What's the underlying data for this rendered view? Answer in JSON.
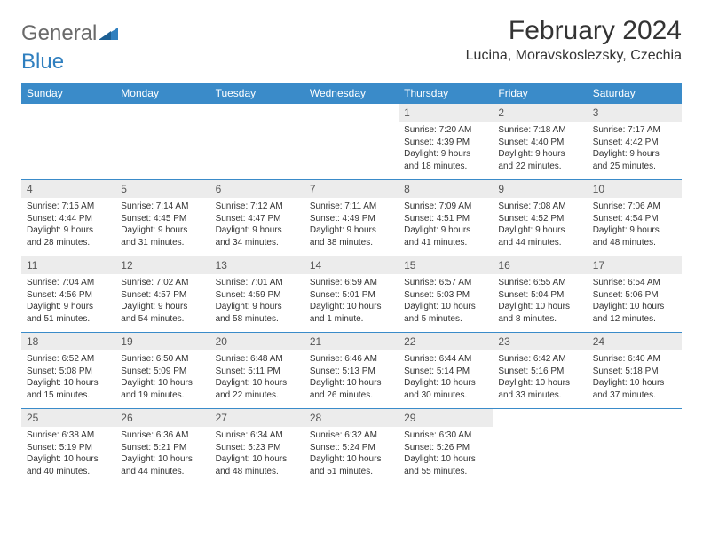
{
  "logo": {
    "text1": "General",
    "text2": "Blue"
  },
  "title": "February 2024",
  "location": "Lucina, Moravskoslezsky, Czechia",
  "colors": {
    "header_bg": "#3a8bc9",
    "header_text": "#ffffff",
    "daynum_bg": "#ececec",
    "border": "#3a8bc9",
    "logo_gray": "#6a6a6a",
    "logo_blue": "#2f7fbf"
  },
  "day_headers": [
    "Sunday",
    "Monday",
    "Tuesday",
    "Wednesday",
    "Thursday",
    "Friday",
    "Saturday"
  ],
  "weeks": [
    [
      null,
      null,
      null,
      null,
      {
        "num": "1",
        "sunrise": "Sunrise: 7:20 AM",
        "sunset": "Sunset: 4:39 PM",
        "daylight1": "Daylight: 9 hours",
        "daylight2": "and 18 minutes."
      },
      {
        "num": "2",
        "sunrise": "Sunrise: 7:18 AM",
        "sunset": "Sunset: 4:40 PM",
        "daylight1": "Daylight: 9 hours",
        "daylight2": "and 22 minutes."
      },
      {
        "num": "3",
        "sunrise": "Sunrise: 7:17 AM",
        "sunset": "Sunset: 4:42 PM",
        "daylight1": "Daylight: 9 hours",
        "daylight2": "and 25 minutes."
      }
    ],
    [
      {
        "num": "4",
        "sunrise": "Sunrise: 7:15 AM",
        "sunset": "Sunset: 4:44 PM",
        "daylight1": "Daylight: 9 hours",
        "daylight2": "and 28 minutes."
      },
      {
        "num": "5",
        "sunrise": "Sunrise: 7:14 AM",
        "sunset": "Sunset: 4:45 PM",
        "daylight1": "Daylight: 9 hours",
        "daylight2": "and 31 minutes."
      },
      {
        "num": "6",
        "sunrise": "Sunrise: 7:12 AM",
        "sunset": "Sunset: 4:47 PM",
        "daylight1": "Daylight: 9 hours",
        "daylight2": "and 34 minutes."
      },
      {
        "num": "7",
        "sunrise": "Sunrise: 7:11 AM",
        "sunset": "Sunset: 4:49 PM",
        "daylight1": "Daylight: 9 hours",
        "daylight2": "and 38 minutes."
      },
      {
        "num": "8",
        "sunrise": "Sunrise: 7:09 AM",
        "sunset": "Sunset: 4:51 PM",
        "daylight1": "Daylight: 9 hours",
        "daylight2": "and 41 minutes."
      },
      {
        "num": "9",
        "sunrise": "Sunrise: 7:08 AM",
        "sunset": "Sunset: 4:52 PM",
        "daylight1": "Daylight: 9 hours",
        "daylight2": "and 44 minutes."
      },
      {
        "num": "10",
        "sunrise": "Sunrise: 7:06 AM",
        "sunset": "Sunset: 4:54 PM",
        "daylight1": "Daylight: 9 hours",
        "daylight2": "and 48 minutes."
      }
    ],
    [
      {
        "num": "11",
        "sunrise": "Sunrise: 7:04 AM",
        "sunset": "Sunset: 4:56 PM",
        "daylight1": "Daylight: 9 hours",
        "daylight2": "and 51 minutes."
      },
      {
        "num": "12",
        "sunrise": "Sunrise: 7:02 AM",
        "sunset": "Sunset: 4:57 PM",
        "daylight1": "Daylight: 9 hours",
        "daylight2": "and 54 minutes."
      },
      {
        "num": "13",
        "sunrise": "Sunrise: 7:01 AM",
        "sunset": "Sunset: 4:59 PM",
        "daylight1": "Daylight: 9 hours",
        "daylight2": "and 58 minutes."
      },
      {
        "num": "14",
        "sunrise": "Sunrise: 6:59 AM",
        "sunset": "Sunset: 5:01 PM",
        "daylight1": "Daylight: 10 hours",
        "daylight2": "and 1 minute."
      },
      {
        "num": "15",
        "sunrise": "Sunrise: 6:57 AM",
        "sunset": "Sunset: 5:03 PM",
        "daylight1": "Daylight: 10 hours",
        "daylight2": "and 5 minutes."
      },
      {
        "num": "16",
        "sunrise": "Sunrise: 6:55 AM",
        "sunset": "Sunset: 5:04 PM",
        "daylight1": "Daylight: 10 hours",
        "daylight2": "and 8 minutes."
      },
      {
        "num": "17",
        "sunrise": "Sunrise: 6:54 AM",
        "sunset": "Sunset: 5:06 PM",
        "daylight1": "Daylight: 10 hours",
        "daylight2": "and 12 minutes."
      }
    ],
    [
      {
        "num": "18",
        "sunrise": "Sunrise: 6:52 AM",
        "sunset": "Sunset: 5:08 PM",
        "daylight1": "Daylight: 10 hours",
        "daylight2": "and 15 minutes."
      },
      {
        "num": "19",
        "sunrise": "Sunrise: 6:50 AM",
        "sunset": "Sunset: 5:09 PM",
        "daylight1": "Daylight: 10 hours",
        "daylight2": "and 19 minutes."
      },
      {
        "num": "20",
        "sunrise": "Sunrise: 6:48 AM",
        "sunset": "Sunset: 5:11 PM",
        "daylight1": "Daylight: 10 hours",
        "daylight2": "and 22 minutes."
      },
      {
        "num": "21",
        "sunrise": "Sunrise: 6:46 AM",
        "sunset": "Sunset: 5:13 PM",
        "daylight1": "Daylight: 10 hours",
        "daylight2": "and 26 minutes."
      },
      {
        "num": "22",
        "sunrise": "Sunrise: 6:44 AM",
        "sunset": "Sunset: 5:14 PM",
        "daylight1": "Daylight: 10 hours",
        "daylight2": "and 30 minutes."
      },
      {
        "num": "23",
        "sunrise": "Sunrise: 6:42 AM",
        "sunset": "Sunset: 5:16 PM",
        "daylight1": "Daylight: 10 hours",
        "daylight2": "and 33 minutes."
      },
      {
        "num": "24",
        "sunrise": "Sunrise: 6:40 AM",
        "sunset": "Sunset: 5:18 PM",
        "daylight1": "Daylight: 10 hours",
        "daylight2": "and 37 minutes."
      }
    ],
    [
      {
        "num": "25",
        "sunrise": "Sunrise: 6:38 AM",
        "sunset": "Sunset: 5:19 PM",
        "daylight1": "Daylight: 10 hours",
        "daylight2": "and 40 minutes."
      },
      {
        "num": "26",
        "sunrise": "Sunrise: 6:36 AM",
        "sunset": "Sunset: 5:21 PM",
        "daylight1": "Daylight: 10 hours",
        "daylight2": "and 44 minutes."
      },
      {
        "num": "27",
        "sunrise": "Sunrise: 6:34 AM",
        "sunset": "Sunset: 5:23 PM",
        "daylight1": "Daylight: 10 hours",
        "daylight2": "and 48 minutes."
      },
      {
        "num": "28",
        "sunrise": "Sunrise: 6:32 AM",
        "sunset": "Sunset: 5:24 PM",
        "daylight1": "Daylight: 10 hours",
        "daylight2": "and 51 minutes."
      },
      {
        "num": "29",
        "sunrise": "Sunrise: 6:30 AM",
        "sunset": "Sunset: 5:26 PM",
        "daylight1": "Daylight: 10 hours",
        "daylight2": "and 55 minutes."
      },
      null,
      null
    ]
  ]
}
